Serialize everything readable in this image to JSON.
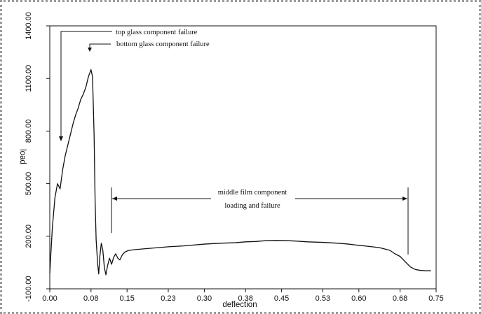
{
  "chart_data": {
    "type": "line",
    "title": "",
    "xlabel": "deflection",
    "ylabel": "load",
    "xlim": [
      0.0,
      0.75
    ],
    "ylim": [
      -100.0,
      1400.0
    ],
    "x_ticks": [
      0.0,
      0.08,
      0.15,
      0.23,
      0.3,
      0.38,
      0.45,
      0.53,
      0.6,
      0.68,
      0.75
    ],
    "x_tick_labels": [
      "0.00",
      "0.08",
      "0.15",
      "0.23",
      "0.30",
      "0.38",
      "0.45",
      "0.53",
      "0.60",
      "0.68",
      "0.75"
    ],
    "y_ticks": [
      -100.0,
      200.0,
      500.0,
      800.0,
      1100.0,
      1400.0
    ],
    "y_tick_labels": [
      "-100.00",
      "200.00",
      "500.00",
      "800.00",
      "1100.00",
      "1400.00"
    ],
    "grid": false,
    "legend": "none",
    "series": [
      {
        "x": [
          0.0,
          0.005,
          0.01,
          0.015,
          0.02,
          0.025,
          0.03,
          0.035,
          0.04,
          0.045,
          0.05,
          0.055,
          0.06,
          0.065,
          0.07,
          0.075,
          0.08,
          0.083,
          0.086,
          0.088,
          0.09,
          0.093,
          0.095,
          0.097,
          0.1,
          0.103,
          0.106,
          0.109,
          0.112,
          0.116,
          0.12,
          0.124,
          0.128,
          0.132,
          0.136,
          0.141,
          0.146,
          0.152,
          0.16,
          0.17,
          0.19,
          0.21,
          0.23,
          0.26,
          0.3,
          0.33,
          0.36,
          0.38,
          0.4,
          0.42,
          0.44,
          0.46,
          0.48,
          0.5,
          0.53,
          0.56,
          0.58,
          0.6,
          0.62,
          0.64,
          0.66,
          0.67,
          0.68,
          0.69,
          0.7,
          0.71,
          0.72,
          0.73,
          0.74
        ],
        "y": [
          -10,
          250,
          420,
          500,
          470,
          580,
          660,
          720,
          780,
          840,
          890,
          930,
          980,
          1010,
          1050,
          1110,
          1150,
          1110,
          780,
          400,
          180,
          40,
          -15,
          80,
          160,
          120,
          20,
          -20,
          30,
          75,
          40,
          80,
          100,
          75,
          65,
          95,
          110,
          118,
          122,
          125,
          130,
          135,
          140,
          145,
          155,
          160,
          163,
          168,
          170,
          175,
          176,
          175,
          172,
          168,
          165,
          160,
          155,
          148,
          142,
          135,
          120,
          100,
          85,
          55,
          25,
          10,
          5,
          3,
          3
        ]
      }
    ],
    "annotations": [
      {
        "text": "top glass component failure"
      },
      {
        "text": "bottom glass component failure"
      },
      {
        "text": "middle film component"
      },
      {
        "text": "loading and failure"
      }
    ]
  }
}
